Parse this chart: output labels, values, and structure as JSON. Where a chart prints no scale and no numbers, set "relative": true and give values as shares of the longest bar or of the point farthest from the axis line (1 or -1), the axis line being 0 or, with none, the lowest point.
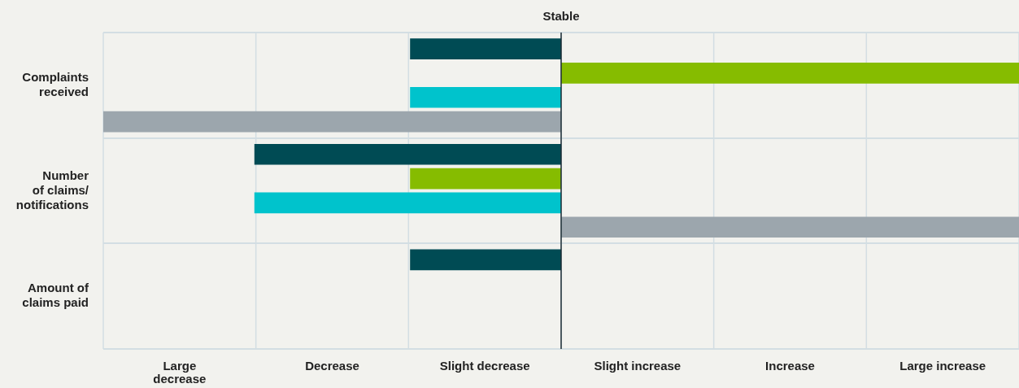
{
  "chart_data": {
    "type": "bar",
    "orientation": "horizontal",
    "relative": true,
    "categories": [
      "Complaints\nreceived",
      "Number\nof claims/\nnotifications",
      "Amount of\nclaims paid"
    ],
    "series": [
      {
        "color": "#004b54",
        "values": [
          -0.33,
          -0.67,
          -0.33
        ]
      },
      {
        "color": "#86bc00",
        "values": [
          1,
          -0.33,
          null
        ]
      },
      {
        "color": "#00c3cc",
        "values": [
          -0.33,
          -0.67,
          null
        ]
      },
      {
        "color": "#9ca6ad",
        "values": [
          -1,
          1,
          null
        ]
      }
    ],
    "annotations": [
      "Large\ndecrease",
      "Decrease",
      "Slight decrease",
      "Slight increase",
      "Increase",
      "Large increase"
    ],
    "ref_lines": [
      {
        "axis": "x",
        "value": 0,
        "label": "Stable",
        "color": "#1b2b33"
      }
    ],
    "grid": true,
    "legend": false
  }
}
